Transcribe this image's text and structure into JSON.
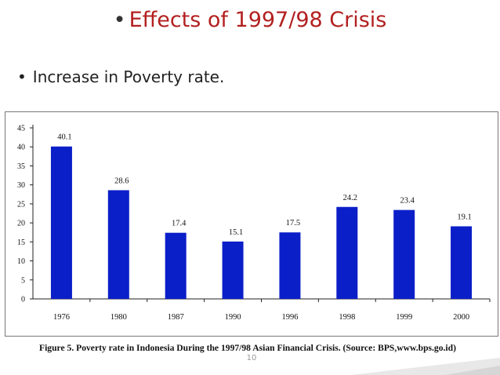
{
  "slide": {
    "title": "Effects of 1997/98 Crisis",
    "bullet": "Increase in Poverty rate.",
    "page_number": "10",
    "accent_color": "#b32020"
  },
  "figure": {
    "caption": "Figure 5. Poverty rate in Indonesia During the 1997/98 Asian Financial Crisis. (Source: BPS,www.bps.go.id)"
  },
  "chart_data": {
    "type": "bar",
    "categories": [
      "1976",
      "1980",
      "1987",
      "1990",
      "1996",
      "1998",
      "1999",
      "2000"
    ],
    "values": [
      40.1,
      28.6,
      17.4,
      15.1,
      17.5,
      24.2,
      23.4,
      19.1
    ],
    "data_labels": [
      "40.1",
      "28.6",
      "17.4",
      "15.1",
      "17.5",
      "24.2",
      "23.4",
      "19.1"
    ],
    "ylim": [
      0,
      45
    ],
    "yticks": [
      0,
      5,
      10,
      15,
      20,
      25,
      30,
      35,
      40,
      45
    ],
    "grid": false,
    "bar_color": "#0b1fc8",
    "title": "",
    "xlabel": "",
    "ylabel": ""
  }
}
